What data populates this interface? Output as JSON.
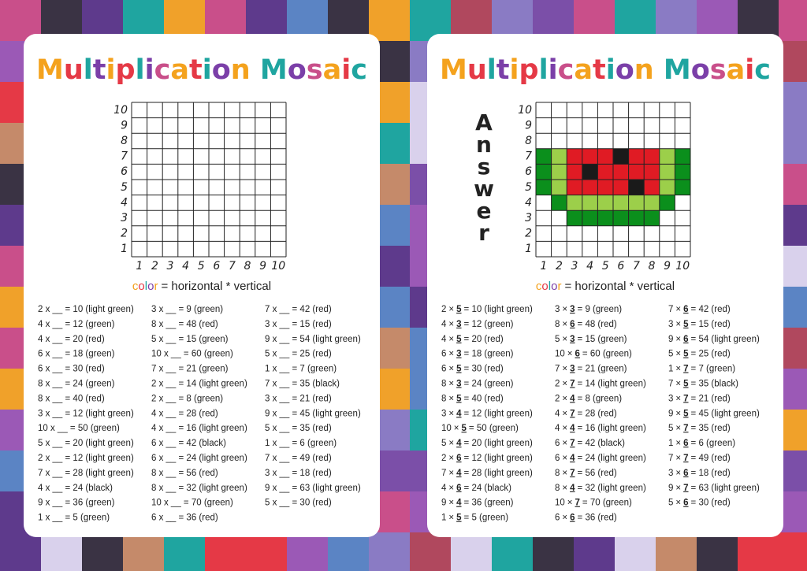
{
  "worksheet": {
    "title": "Multiplication Mosaic",
    "axis": [
      1,
      2,
      3,
      4,
      5,
      6,
      7,
      8,
      9,
      10
    ],
    "caption_word": "color",
    "caption_rest": "= horizontal * vertical",
    "columns": [
      [
        "2 x __ = 10  (light green)",
        "4 x __ = 12  (green)",
        "4 x __ = 20  (red)",
        "6 x __ = 18  (green)",
        "6 x __ = 30  (red)",
        "8 x __ = 24  (green)",
        "8 x __ = 40  (red)",
        "3 x __ = 12  (light green)",
        "10 x __ = 50  (green)",
        "5 x __ = 20  (light green)",
        "2 x __ = 12  (light green)",
        "7 x __ = 28  (light green)",
        "4 x __ = 24  (black)",
        "9 x __ = 36  (green)",
        "1 x __ = 5  (green)"
      ],
      [
        "3 x __ = 9  (green)",
        "8 x __ = 48  (red)",
        "5 x __ = 15  (green)",
        "10 x __ = 60  (green)",
        "7 x __ = 21  (green)",
        "2 x __ = 14  (light green)",
        "2 x __ = 8  (green)",
        "4 x __ = 28  (red)",
        "4 x __ = 16  (light green)",
        "6 x __ = 42  (black)",
        "6 x __ = 24  (light green)",
        "8 x __ = 56  (red)",
        "8 x __ = 32  (light green)",
        "10 x __ = 70  (green)",
        "6 x __ = 36  (red)"
      ],
      [
        "7 x __ = 42  (red)",
        "3 x __ = 15  (red)",
        "9 x __ = 54  (light green)",
        "5 x __ = 25  (red)",
        "1 x __ = 7  (green)",
        "7 x __ = 35  (black)",
        "3 x __ = 21  (red)",
        "9 x __ = 45  (light green)",
        "5 x __ = 35  (red)",
        "1 x __ = 6  (green)",
        "7 x __ = 49  (red)",
        "3 x __ = 18  (red)",
        "9 x __ = 63  (light green)",
        "5 x __ = 30  (red)"
      ]
    ]
  },
  "answer_sheet": {
    "title": "Multiplication Mosaic",
    "label": "Answer",
    "axis": [
      1,
      2,
      3,
      4,
      5,
      6,
      7,
      8,
      9,
      10
    ],
    "caption_word": "color",
    "caption_rest": "= horizontal * vertical",
    "columns": [
      [
        {
          "a": 2,
          "answer": 5,
          "rest": "= 10  (light green)",
          "color": "light green"
        },
        {
          "a": 4,
          "answer": 3,
          "rest": "= 12  (green)",
          "color": "green"
        },
        {
          "a": 4,
          "answer": 5,
          "rest": "= 20  (red)",
          "color": "red"
        },
        {
          "a": 6,
          "answer": 3,
          "rest": "= 18  (green)",
          "color": "green"
        },
        {
          "a": 6,
          "answer": 5,
          "rest": "= 30  (red)",
          "color": "red"
        },
        {
          "a": 8,
          "answer": 3,
          "rest": "= 24  (green)",
          "color": "green"
        },
        {
          "a": 8,
          "answer": 5,
          "rest": "= 40  (red)",
          "color": "red"
        },
        {
          "a": 3,
          "answer": 4,
          "rest": "= 12  (light green)",
          "color": "light green"
        },
        {
          "a": 10,
          "answer": 5,
          "rest": "= 50  (green)",
          "color": "green"
        },
        {
          "a": 5,
          "answer": 4,
          "rest": "= 20  (light green)",
          "color": "light green"
        },
        {
          "a": 2,
          "answer": 6,
          "rest": "= 12  (light green)",
          "color": "light green"
        },
        {
          "a": 7,
          "answer": 4,
          "rest": "= 28  (light green)",
          "color": "light green"
        },
        {
          "a": 4,
          "answer": 6,
          "rest": "= 24  (black)",
          "color": "black"
        },
        {
          "a": 9,
          "answer": 4,
          "rest": "= 36  (green)",
          "color": "green"
        },
        {
          "a": 1,
          "answer": 5,
          "rest": "= 5  (green)",
          "color": "green"
        }
      ],
      [
        {
          "a": 3,
          "answer": 3,
          "rest": "= 9  (green)",
          "color": "green"
        },
        {
          "a": 8,
          "answer": 6,
          "rest": "= 48  (red)",
          "color": "red"
        },
        {
          "a": 5,
          "answer": 3,
          "rest": "= 15  (green)",
          "color": "green"
        },
        {
          "a": 10,
          "answer": 6,
          "rest": "= 60  (green)",
          "color": "green"
        },
        {
          "a": 7,
          "answer": 3,
          "rest": "= 21  (green)",
          "color": "green"
        },
        {
          "a": 2,
          "answer": 7,
          "rest": "= 14  (light green)",
          "color": "light green"
        },
        {
          "a": 2,
          "answer": 4,
          "rest": "= 8  (green)",
          "color": "green"
        },
        {
          "a": 4,
          "answer": 7,
          "rest": "= 28  (red)",
          "color": "red"
        },
        {
          "a": 4,
          "answer": 4,
          "rest": "= 16  (light green)",
          "color": "light green"
        },
        {
          "a": 6,
          "answer": 7,
          "rest": "= 42  (black)",
          "color": "black"
        },
        {
          "a": 6,
          "answer": 4,
          "rest": "= 24  (light green)",
          "color": "light green"
        },
        {
          "a": 8,
          "answer": 7,
          "rest": "= 56  (red)",
          "color": "red"
        },
        {
          "a": 8,
          "answer": 4,
          "rest": "= 32  (light green)",
          "color": "light green"
        },
        {
          "a": 10,
          "answer": 7,
          "rest": "= 70  (green)",
          "color": "green"
        },
        {
          "a": 6,
          "answer": 6,
          "rest": "= 36  (red)",
          "color": "red"
        }
      ],
      [
        {
          "a": 7,
          "answer": 6,
          "rest": "= 42  (red)",
          "color": "red"
        },
        {
          "a": 3,
          "answer": 5,
          "rest": "= 15  (red)",
          "color": "red"
        },
        {
          "a": 9,
          "answer": 6,
          "rest": "= 54  (light green)",
          "color": "light green"
        },
        {
          "a": 5,
          "answer": 5,
          "rest": "= 25  (red)",
          "color": "red"
        },
        {
          "a": 1,
          "answer": 7,
          "rest": "= 7  (green)",
          "color": "green"
        },
        {
          "a": 7,
          "answer": 5,
          "rest": "= 35  (black)",
          "color": "black"
        },
        {
          "a": 3,
          "answer": 7,
          "rest": "= 21  (red)",
          "color": "red"
        },
        {
          "a": 9,
          "answer": 5,
          "rest": "= 45  (light green)",
          "color": "light green"
        },
        {
          "a": 5,
          "answer": 7,
          "rest": "= 35  (red)",
          "color": "red"
        },
        {
          "a": 1,
          "answer": 6,
          "rest": "= 6  (green)",
          "color": "green"
        },
        {
          "a": 7,
          "answer": 7,
          "rest": "= 49  (red)",
          "color": "red"
        },
        {
          "a": 3,
          "answer": 6,
          "rest": "= 18  (red)",
          "color": "red"
        },
        {
          "a": 9,
          "answer": 7,
          "rest": "= 63  (light green)",
          "color": "light green"
        },
        {
          "a": 5,
          "answer": 6,
          "rest": "= 30  (red)",
          "color": "red"
        }
      ]
    ]
  }
}
